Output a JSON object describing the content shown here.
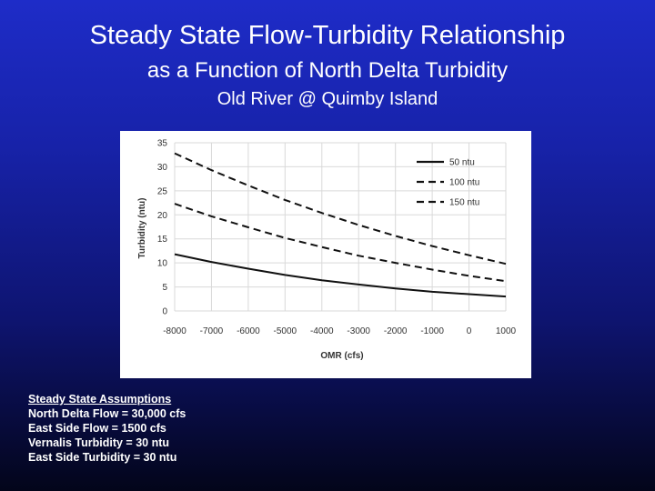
{
  "slide": {
    "title": "Steady State Flow-Turbidity Relationship",
    "subtitle": "as a Function of North Delta Turbidity",
    "location": "Old River @ Quimby Island"
  },
  "assumptions": {
    "heading": "Steady State Assumptions",
    "items": [
      "North Delta Flow = 30,000 cfs",
      "East Side Flow = 1500 cfs",
      "Vernalis Turbidity = 30 ntu",
      "East Side Turbidity = 30 ntu"
    ]
  },
  "chart_data": {
    "type": "line",
    "xlabel": "OMR (cfs)",
    "ylabel": "Turbidity (ntu)",
    "xlim": [
      -8000,
      1000
    ],
    "ylim": [
      0,
      35
    ],
    "x_ticks": [
      "-8000",
      "-7000",
      "-6000",
      "-5000",
      "-4000",
      "-3000",
      "-2000",
      "-1000",
      "0",
      "1000"
    ],
    "y_ticks": [
      "0",
      "5",
      "10",
      "15",
      "20",
      "25",
      "30",
      "35"
    ],
    "grid": true,
    "legend_position": "top-right",
    "x": [
      -8000,
      -7000,
      -6000,
      -5000,
      -4000,
      -3000,
      -2000,
      -1000,
      0,
      1000
    ],
    "series": [
      {
        "name": "50 ntu",
        "dash": "solid",
        "values": [
          11.8,
          10.2,
          8.8,
          7.5,
          6.4,
          5.5,
          4.7,
          4.0,
          3.5,
          3.0
        ]
      },
      {
        "name": "100 ntu",
        "dash": "dashed",
        "values": [
          22.3,
          19.7,
          17.4,
          15.2,
          13.3,
          11.5,
          10.0,
          8.6,
          7.3,
          6.2
        ]
      },
      {
        "name": "150 ntu",
        "dash": "dashed",
        "values": [
          32.8,
          29.3,
          26.1,
          23.1,
          20.4,
          17.9,
          15.6,
          13.5,
          11.6,
          9.8
        ]
      }
    ],
    "line_color": "#111111"
  }
}
